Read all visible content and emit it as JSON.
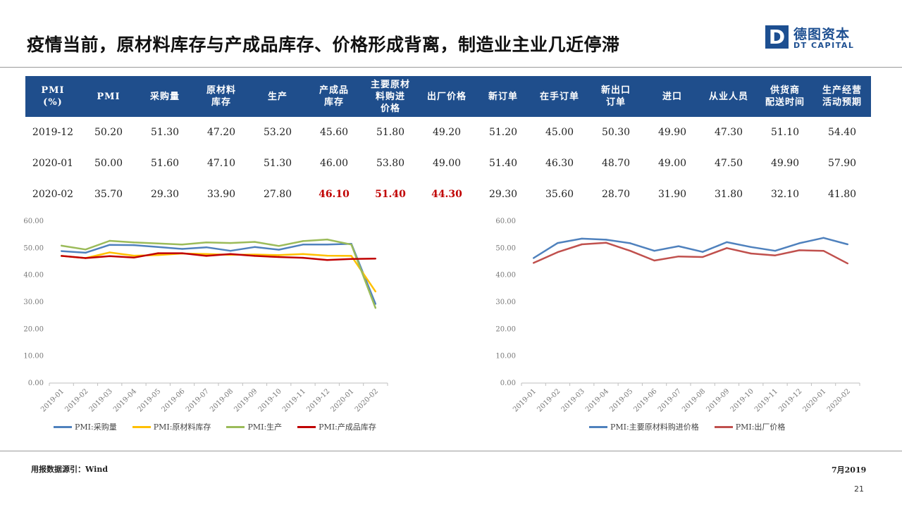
{
  "title": "疫情当前，原材料库存与产成品库存、价格形成背离，制造业主业几近停滞",
  "logo": {
    "mark": "D",
    "cn": "德图资本",
    "en": "DT CAPITAL"
  },
  "table": {
    "headers": [
      "PMI\n(%)",
      "PMI",
      "采购量",
      "原材料\n库存",
      "生产",
      "产成品\n库存",
      "主要原材\n料购进\n价格",
      "出厂价格",
      "新订单",
      "在手订单",
      "新出口\n订单",
      "进口",
      "从业人员",
      "供货商\n配送时间",
      "生产经营\n活动预期"
    ],
    "rows": [
      [
        "2019-12",
        "50.20",
        "51.30",
        "47.20",
        "53.20",
        "45.60",
        "51.80",
        "49.20",
        "51.20",
        "45.00",
        "50.30",
        "49.90",
        "47.30",
        "51.10",
        "54.40"
      ],
      [
        "2020-01",
        "50.00",
        "51.60",
        "47.10",
        "51.30",
        "46.00",
        "53.80",
        "49.00",
        "51.40",
        "46.30",
        "48.70",
        "49.00",
        "47.50",
        "49.90",
        "57.90"
      ],
      [
        "2020-02",
        "35.70",
        "29.30",
        "33.90",
        "27.80",
        "46.10",
        "51.40",
        "44.30",
        "29.30",
        "35.60",
        "28.70",
        "31.90",
        "31.80",
        "32.10",
        "41.80"
      ]
    ],
    "highlight_color": "#c00000",
    "highlight_cells": [
      [
        2,
        5
      ],
      [
        2,
        6
      ],
      [
        2,
        7
      ]
    ]
  },
  "chart_data": [
    {
      "type": "line",
      "x": [
        "2019-01",
        "2019-02",
        "2019-03",
        "2019-04",
        "2019-05",
        "2019-06",
        "2019-07",
        "2019-08",
        "2019-09",
        "2019-10",
        "2019-11",
        "2019-12",
        "2020-01",
        "2020-02"
      ],
      "ylim": [
        0,
        60
      ],
      "yticks": [
        "0.00",
        "10.00",
        "20.00",
        "30.00",
        "40.00",
        "50.00",
        "60.00"
      ],
      "grid": false,
      "legend": "bottom",
      "series": [
        {
          "name": "PMI:采购量",
          "color": "#4f81bd",
          "values": [
            48.9,
            48.3,
            51.2,
            51.1,
            50.4,
            49.7,
            50.3,
            49.0,
            50.4,
            49.4,
            51.3,
            51.3,
            51.6,
            29.3
          ]
        },
        {
          "name": "PMI:原材料库存",
          "color": "#ffc000",
          "values": [
            47.1,
            46.3,
            48.4,
            47.2,
            47.4,
            48.0,
            47.8,
            47.5,
            47.6,
            47.4,
            47.8,
            47.2,
            47.1,
            33.9
          ]
        },
        {
          "name": "PMI:生产",
          "color": "#9bbb59",
          "values": [
            50.9,
            49.5,
            52.7,
            52.1,
            51.7,
            51.3,
            52.1,
            51.9,
            52.3,
            50.8,
            52.6,
            53.2,
            51.3,
            27.8
          ]
        },
        {
          "name": "PMI:产成品库存",
          "color": "#c00000",
          "values": [
            47.1,
            46.3,
            47.0,
            46.5,
            48.1,
            48.1,
            47.1,
            47.8,
            47.1,
            46.7,
            46.4,
            45.6,
            46.0,
            46.1
          ]
        }
      ]
    },
    {
      "type": "line",
      "x": [
        "2019-01",
        "2019-02",
        "2019-03",
        "2019-04",
        "2019-05",
        "2019-06",
        "2019-07",
        "2019-08",
        "2019-09",
        "2019-10",
        "2019-11",
        "2019-12",
        "2020-01",
        "2020-02"
      ],
      "ylim": [
        0,
        60
      ],
      "yticks": [
        "0.00",
        "10.00",
        "20.00",
        "30.00",
        "40.00",
        "50.00",
        "60.00"
      ],
      "grid": false,
      "legend": "bottom",
      "series": [
        {
          "name": "PMI:主要原材料购进价格",
          "color": "#4f81bd",
          "values": [
            46.3,
            51.9,
            53.5,
            53.1,
            51.8,
            49.0,
            50.7,
            48.6,
            52.2,
            50.4,
            49.0,
            51.8,
            53.8,
            51.4
          ]
        },
        {
          "name": "PMI:出厂价格",
          "color": "#c0504d",
          "values": [
            44.5,
            48.5,
            51.4,
            52.0,
            49.0,
            45.4,
            46.9,
            46.7,
            50.0,
            48.0,
            47.3,
            49.2,
            49.0,
            44.3
          ]
        }
      ]
    }
  ],
  "footer": {
    "source": "用报数据源引：Wind",
    "date": "7月2019",
    "page": "21"
  }
}
